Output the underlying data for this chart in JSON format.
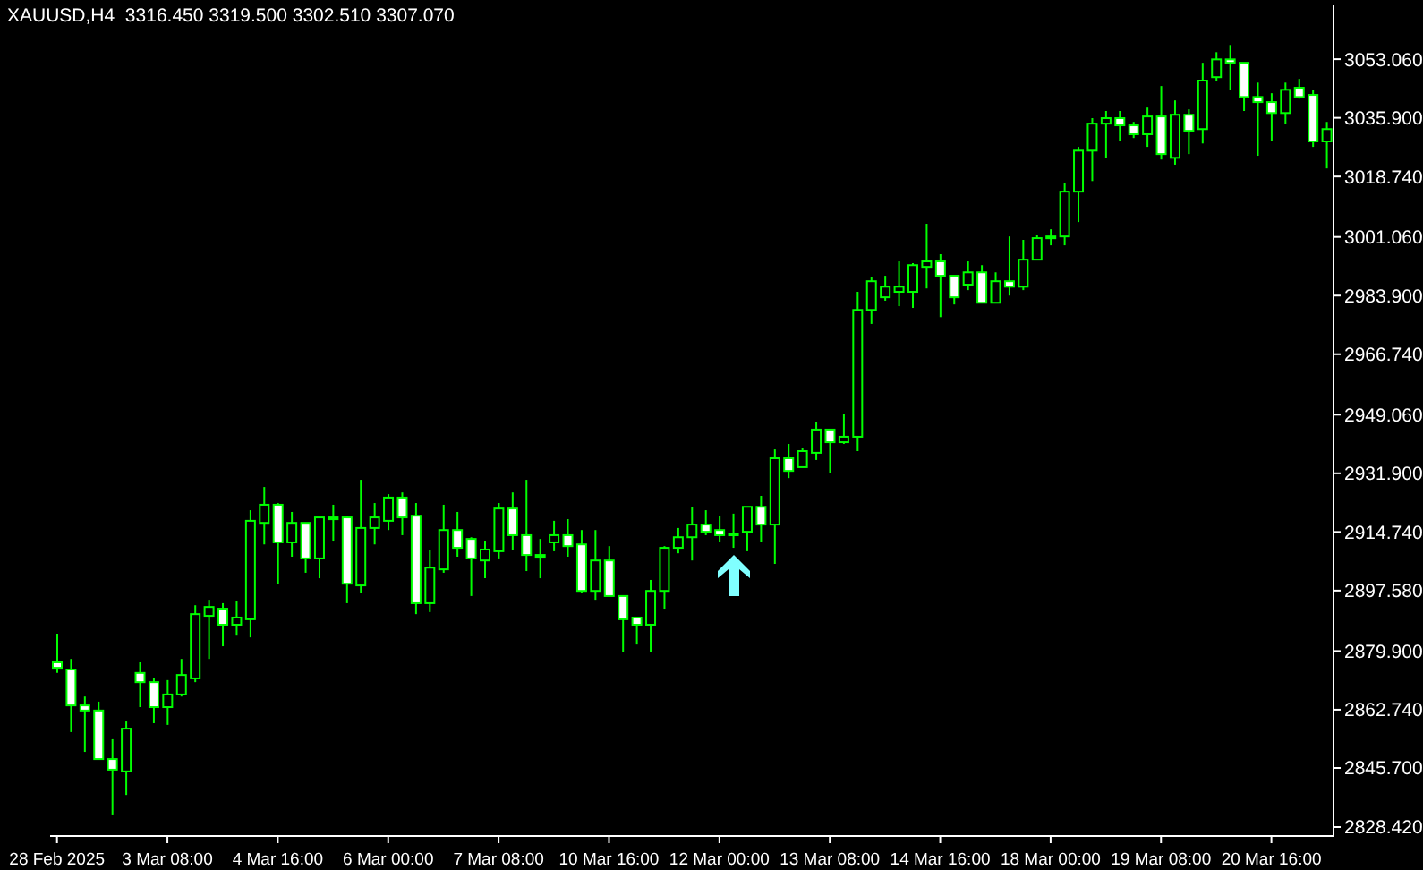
{
  "chart_data": {
    "type": "candlestick",
    "title": "XAUUSD,H4  3316.450 3319.500 3302.510 3307.070",
    "categories": [
      "28 Feb 2025",
      null,
      null,
      null,
      null,
      null,
      null,
      null,
      "3 Mar 08:00",
      null,
      null,
      null,
      null,
      null,
      null,
      null,
      "4 Mar 16:00",
      null,
      null,
      null,
      null,
      null,
      null,
      null,
      "6 Mar 00:00",
      null,
      null,
      null,
      null,
      null,
      null,
      null,
      "7 Mar 08:00",
      null,
      null,
      null,
      null,
      null,
      null,
      null,
      "10 Mar 16:00",
      null,
      null,
      null,
      null,
      null,
      null,
      null,
      "12 Mar 00:00",
      null,
      null,
      null,
      null,
      null,
      null,
      null,
      "13 Mar 08:00",
      null,
      null,
      null,
      null,
      null,
      null,
      null,
      "14 Mar 16:00",
      null,
      null,
      null,
      null,
      null,
      null,
      null,
      "18 Mar 00:00",
      null,
      null,
      null,
      null,
      null,
      null,
      null,
      "19 Mar 08:00",
      null,
      null,
      null,
      null,
      null,
      null,
      null,
      "20 Mar 16:00",
      null,
      null,
      null,
      null
    ],
    "color": "#00ff00",
    "ohlc": [
      [
        2876.6,
        2885.0,
        2873.5,
        2875.0
      ],
      [
        2874.5,
        2877.6,
        2856.2,
        2864.0
      ],
      [
        2864.0,
        2866.6,
        2850.4,
        2862.5
      ],
      [
        2862.5,
        2865.1,
        2848.3,
        2848.3
      ],
      [
        2848.3,
        2854.1,
        2832.1,
        2845.2
      ],
      [
        2844.7,
        2859.3,
        2837.8,
        2857.2
      ],
      [
        2873.5,
        2876.6,
        2863.5,
        2870.8
      ],
      [
        2870.8,
        2871.9,
        2858.8,
        2863.5
      ],
      [
        2863.5,
        2871.4,
        2858.3,
        2867.2
      ],
      [
        2867.2,
        2877.6,
        2866.6,
        2872.9
      ],
      [
        2871.9,
        2893.3,
        2870.8,
        2890.7
      ],
      [
        2890.2,
        2894.9,
        2877.6,
        2892.8
      ],
      [
        2892.3,
        2893.9,
        2881.3,
        2887.6
      ],
      [
        2887.6,
        2894.4,
        2884.4,
        2889.7
      ],
      [
        2889.2,
        2921.1,
        2883.9,
        2918.0
      ],
      [
        2917.4,
        2927.9,
        2911.1,
        2922.7
      ],
      [
        2922.7,
        2923.2,
        2899.6,
        2911.7
      ],
      [
        2911.7,
        2920.6,
        2907.5,
        2917.4
      ],
      [
        2917.4,
        2917.4,
        2902.8,
        2907.0
      ],
      [
        2907.0,
        2919.0,
        2901.2,
        2919.0
      ],
      [
        2919.0,
        2922.7,
        2912.2,
        2919.0
      ],
      [
        2919.0,
        2919.5,
        2893.9,
        2899.6
      ],
      [
        2899.1,
        2930.0,
        2897.0,
        2915.9
      ],
      [
        2915.9,
        2923.2,
        2911.1,
        2919.0
      ],
      [
        2918.0,
        2925.8,
        2915.3,
        2924.8
      ],
      [
        2924.8,
        2926.3,
        2913.8,
        2919.0
      ],
      [
        2919.5,
        2923.2,
        2890.7,
        2893.9
      ],
      [
        2893.9,
        2909.6,
        2891.3,
        2904.3
      ],
      [
        2903.8,
        2922.7,
        2902.8,
        2915.3
      ],
      [
        2915.3,
        2920.6,
        2907.5,
        2910.1
      ],
      [
        2912.7,
        2913.2,
        2896.0,
        2907.0
      ],
      [
        2906.4,
        2912.2,
        2901.2,
        2909.6
      ],
      [
        2909.1,
        2923.2,
        2907.0,
        2921.6
      ],
      [
        2921.6,
        2926.3,
        2909.6,
        2913.8
      ],
      [
        2913.8,
        2930.0,
        2903.3,
        2908.0
      ],
      [
        2908.0,
        2912.7,
        2901.2,
        2908.0
      ],
      [
        2911.7,
        2918.0,
        2909.1,
        2913.8
      ],
      [
        2913.8,
        2918.5,
        2907.5,
        2910.6
      ],
      [
        2911.1,
        2915.3,
        2897.0,
        2897.5
      ],
      [
        2897.5,
        2915.3,
        2894.9,
        2906.4
      ],
      [
        2906.4,
        2910.6,
        2896.0,
        2896.0
      ],
      [
        2896.0,
        2896.0,
        2879.7,
        2889.2
      ],
      [
        2889.7,
        2889.7,
        2881.8,
        2887.6
      ],
      [
        2887.6,
        2900.7,
        2879.7,
        2897.5
      ],
      [
        2897.5,
        2910.6,
        2892.3,
        2910.1
      ],
      [
        2910.1,
        2915.9,
        2908.5,
        2913.2
      ],
      [
        2913.2,
        2922.1,
        2906.4,
        2916.9
      ],
      [
        2916.9,
        2921.1,
        2913.8,
        2914.8
      ],
      [
        2915.3,
        2919.5,
        2911.7,
        2913.8
      ],
      [
        2914.3,
        2920.1,
        2910.1,
        2914.3
      ],
      [
        2914.8,
        2922.1,
        2909.1,
        2922.1
      ],
      [
        2922.1,
        2925.3,
        2911.7,
        2916.9
      ],
      [
        2916.9,
        2938.9,
        2905.4,
        2936.3
      ],
      [
        2936.3,
        2940.5,
        2930.5,
        2932.6
      ],
      [
        2933.7,
        2939.4,
        2933.7,
        2938.4
      ],
      [
        2937.9,
        2946.8,
        2935.8,
        2944.7
      ],
      [
        2944.7,
        2944.7,
        2932.1,
        2941.0
      ],
      [
        2941.0,
        2949.4,
        2940.5,
        2942.6
      ],
      [
        2942.6,
        2985.0,
        2938.4,
        2979.7
      ],
      [
        2979.7,
        2989.2,
        2975.6,
        2988.1
      ],
      [
        2983.4,
        2989.7,
        2982.4,
        2986.5
      ],
      [
        2985.0,
        2993.9,
        2980.8,
        2986.5
      ],
      [
        2985.0,
        2993.4,
        2980.3,
        2992.8
      ],
      [
        2992.3,
        3004.9,
        2986.0,
        2993.9
      ],
      [
        2993.9,
        2996.0,
        2977.6,
        2989.7
      ],
      [
        2989.7,
        2989.7,
        2981.3,
        2983.4
      ],
      [
        2987.1,
        2993.9,
        2985.5,
        2990.7
      ],
      [
        2990.7,
        2992.8,
        2981.8,
        2981.8
      ],
      [
        2981.8,
        2990.7,
        2981.8,
        2988.1
      ],
      [
        2988.1,
        3001.2,
        2983.9,
        2986.5
      ],
      [
        2986.5,
        3000.2,
        2985.5,
        2994.4
      ],
      [
        2994.4,
        3001.7,
        2994.4,
        3000.7
      ],
      [
        3000.7,
        3003.3,
        2998.6,
        3001.2
      ],
      [
        3001.2,
        3016.9,
        2998.6,
        3014.3
      ],
      [
        3014.3,
        3027.4,
        3005.4,
        3026.3
      ],
      [
        3026.3,
        3035.8,
        3017.4,
        3034.2
      ],
      [
        3034.2,
        3037.9,
        3024.2,
        3035.8
      ],
      [
        3035.8,
        3037.9,
        3029.0,
        3033.7
      ],
      [
        3033.7,
        3034.7,
        3030.0,
        3031.1
      ],
      [
        3031.1,
        3038.9,
        3027.4,
        3036.3
      ],
      [
        3036.3,
        3045.2,
        3023.7,
        3025.3
      ],
      [
        3024.2,
        3041.0,
        3022.2,
        3036.8
      ],
      [
        3036.8,
        3038.4,
        3025.3,
        3032.1
      ],
      [
        3032.6,
        3052.0,
        3028.4,
        3046.8
      ],
      [
        3047.8,
        3055.1,
        3046.8,
        3053.0
      ],
      [
        3053.0,
        3057.2,
        3044.1,
        3052.0
      ],
      [
        3052.0,
        3052.0,
        3037.9,
        3042.0
      ],
      [
        3042.0,
        3046.2,
        3024.8,
        3040.5
      ],
      [
        3040.5,
        3043.1,
        3029.0,
        3037.3
      ],
      [
        3037.3,
        3046.2,
        3034.2,
        3044.1
      ],
      [
        3044.7,
        3047.3,
        3041.5,
        3042.0
      ],
      [
        3042.6,
        3044.1,
        3027.4,
        3029.0
      ],
      [
        3029.0,
        3034.7,
        3021.1,
        3032.6
      ]
    ],
    "ylim": [
      2825.8,
      3068.8
    ],
    "yticks": [
      {
        "value": 2828.42,
        "label": "2828.420"
      },
      {
        "value": 2845.7,
        "label": "2845.700"
      },
      {
        "value": 2862.74,
        "label": "2862.740"
      },
      {
        "value": 2879.9,
        "label": "2879.900"
      },
      {
        "value": 2897.58,
        "label": "2897.580"
      },
      {
        "value": 2914.74,
        "label": "2914.740"
      },
      {
        "value": 2931.9,
        "label": "2931.900"
      },
      {
        "value": 2949.06,
        "label": "2949.060"
      },
      {
        "value": 2966.74,
        "label": "2966.740"
      },
      {
        "value": 2983.9,
        "label": "2983.900"
      },
      {
        "value": 3001.06,
        "label": "3001.060"
      },
      {
        "value": 3018.74,
        "label": "3018.740"
      },
      {
        "value": 3035.9,
        "label": "3035.900"
      },
      {
        "value": 3053.06,
        "label": "3053.060"
      }
    ],
    "grid": false
  }
}
